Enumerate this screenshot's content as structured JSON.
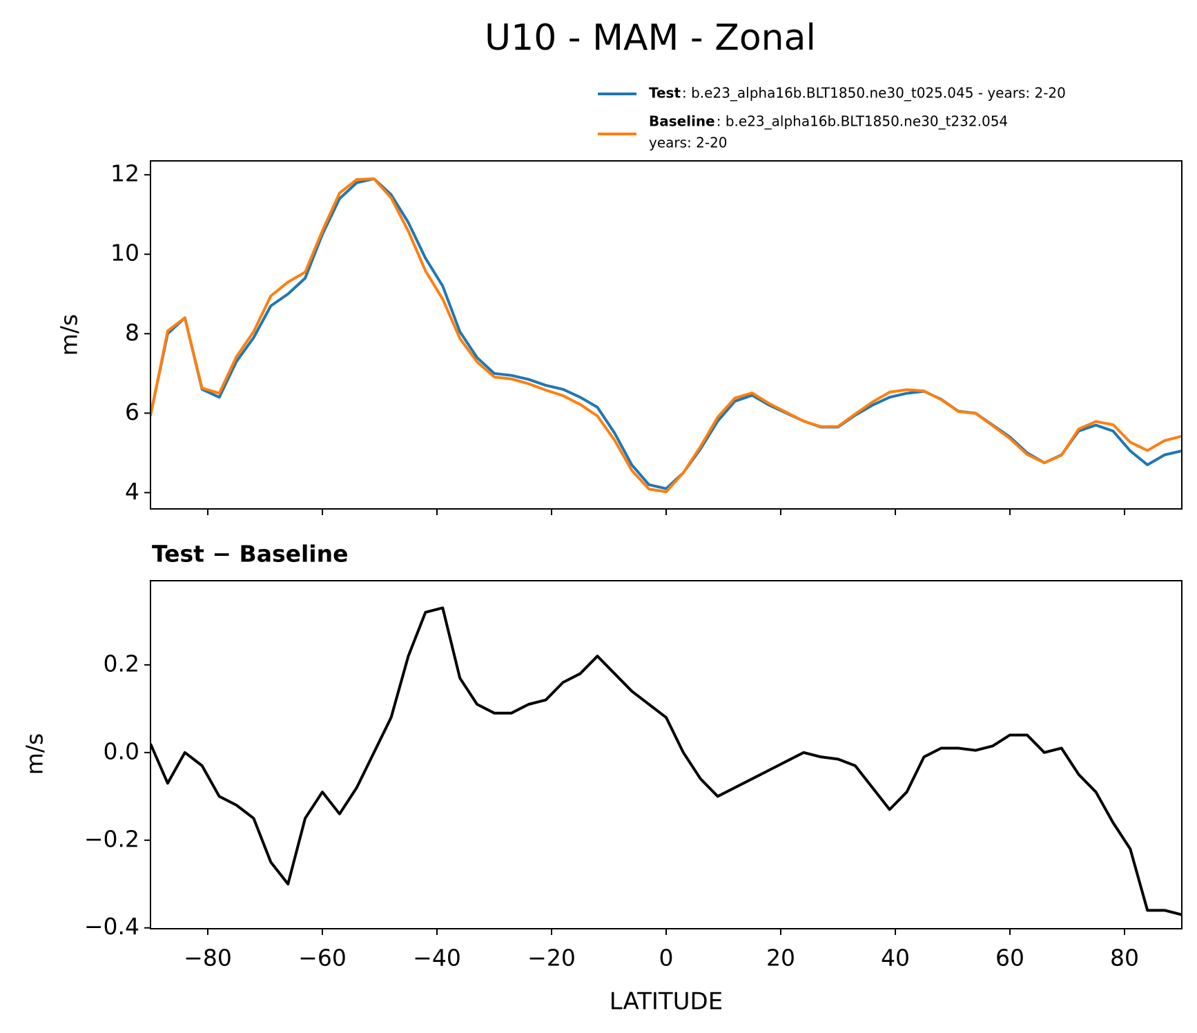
{
  "chart_data": [
    {
      "type": "line",
      "title": "U10 - MAM - Zonal",
      "ylabel": "m/s",
      "x": [
        -90,
        -87,
        -84,
        -81,
        -78,
        -75,
        -72,
        -69,
        -66,
        -63,
        -60,
        -57,
        -54,
        -51,
        -48,
        -45,
        -42,
        -39,
        -36,
        -33,
        -30,
        -27,
        -24,
        -21,
        -18,
        -15,
        -12,
        -9,
        -6,
        -3,
        0,
        3,
        6,
        9,
        12,
        15,
        18,
        21,
        24,
        27,
        30,
        33,
        36,
        39,
        42,
        45,
        48,
        51,
        54,
        57,
        60,
        63,
        66,
        69,
        72,
        75,
        78,
        81,
        84,
        87,
        90
      ],
      "series": [
        {
          "name": "Test",
          "case_lines": [
            ": b.e23_alpha16b.BLT1850.ne30_t025.045 - years: 2-20"
          ],
          "color": "#1f77b4",
          "values": [
            5.95,
            8.0,
            8.4,
            6.6,
            6.4,
            7.3,
            7.9,
            8.7,
            9.0,
            9.4,
            10.5,
            11.4,
            11.8,
            11.9,
            11.5,
            10.8,
            9.9,
            9.2,
            8.05,
            7.4,
            7.0,
            6.95,
            6.85,
            6.7,
            6.6,
            6.4,
            6.15,
            5.5,
            4.7,
            4.2,
            4.1,
            4.5,
            5.1,
            5.8,
            6.3,
            6.45,
            6.2,
            6.0,
            5.8,
            5.65,
            5.65,
            5.95,
            6.2,
            6.4,
            6.5,
            6.55,
            6.35,
            6.05,
            6.0,
            5.7,
            5.4,
            5.0,
            4.75,
            4.95,
            5.55,
            5.7,
            5.55,
            5.05,
            4.7,
            4.95,
            5.05
          ]
        },
        {
          "name": "Baseline",
          "case_lines": [
            ": b.e23_alpha16b.BLT1850.ne30_t232.054",
            "years: 2-20"
          ],
          "color": "#ff7f0e",
          "values": [
            5.93,
            8.07,
            8.4,
            6.63,
            6.5,
            7.42,
            8.05,
            8.95,
            9.3,
            9.55,
            10.59,
            11.54,
            11.88,
            11.9,
            11.42,
            10.58,
            9.58,
            8.87,
            7.88,
            7.29,
            6.91,
            6.86,
            6.74,
            6.58,
            6.44,
            6.22,
            5.93,
            5.32,
            4.56,
            4.09,
            4.02,
            4.5,
            5.16,
            5.9,
            6.38,
            6.51,
            6.24,
            6.02,
            5.8,
            5.66,
            5.665,
            5.98,
            6.28,
            6.53,
            6.59,
            6.56,
            6.34,
            6.04,
            5.995,
            5.685,
            5.36,
            4.96,
            4.75,
            4.94,
            5.6,
            5.79,
            5.71,
            5.27,
            5.06,
            5.31,
            5.42
          ]
        }
      ],
      "xlim": [
        -90,
        90
      ],
      "xticks": [
        -80,
        -60,
        -40,
        -20,
        0,
        20,
        40,
        60,
        80
      ],
      "ylim": [
        3.59,
        12.35
      ],
      "yticks": [
        4,
        6,
        8,
        10,
        12
      ]
    },
    {
      "type": "line",
      "title": "Test − Baseline",
      "ylabel": "m/s",
      "xlabel": "LATITUDE",
      "x": [
        -90,
        -87,
        -84,
        -81,
        -78,
        -75,
        -72,
        -69,
        -66,
        -63,
        -60,
        -57,
        -54,
        -51,
        -48,
        -45,
        -42,
        -39,
        -36,
        -33,
        -30,
        -27,
        -24,
        -21,
        -18,
        -15,
        -12,
        -9,
        -6,
        -3,
        0,
        3,
        6,
        9,
        12,
        15,
        18,
        21,
        24,
        27,
        30,
        33,
        36,
        39,
        42,
        45,
        48,
        51,
        54,
        57,
        60,
        63,
        66,
        69,
        72,
        75,
        78,
        81,
        84,
        87,
        90
      ],
      "series": [
        {
          "color": "#000000",
          "values": [
            0.02,
            -0.07,
            0.0,
            -0.03,
            -0.1,
            -0.12,
            -0.15,
            -0.25,
            -0.3,
            -0.15,
            -0.09,
            -0.14,
            -0.08,
            0.0,
            0.08,
            0.22,
            0.32,
            0.33,
            0.17,
            0.11,
            0.09,
            0.09,
            0.11,
            0.12,
            0.16,
            0.18,
            0.22,
            0.18,
            0.14,
            0.11,
            0.08,
            0.0,
            -0.06,
            -0.1,
            -0.08,
            -0.06,
            -0.04,
            -0.02,
            0.0,
            -0.01,
            -0.015,
            -0.03,
            -0.08,
            -0.13,
            -0.09,
            -0.01,
            0.01,
            0.01,
            0.005,
            0.015,
            0.04,
            0.04,
            0.0,
            0.01,
            -0.05,
            -0.09,
            -0.16,
            -0.22,
            -0.36,
            -0.36,
            -0.37
          ]
        }
      ],
      "xlim": [
        -90,
        90
      ],
      "xticks": [
        {
          "value": -80,
          "label": "−80"
        },
        {
          "value": -60,
          "label": "−60"
        },
        {
          "value": -40,
          "label": "−40"
        },
        {
          "value": -20,
          "label": "−20"
        },
        0,
        20,
        40,
        60,
        80
      ],
      "ylim": [
        -0.402,
        0.392
      ],
      "yticks": [
        {
          "value": -0.4,
          "label": "−0.4"
        },
        {
          "value": -0.2,
          "label": "−0.2"
        },
        {
          "value": 0,
          "label": "0.0"
        },
        0.2
      ]
    }
  ]
}
